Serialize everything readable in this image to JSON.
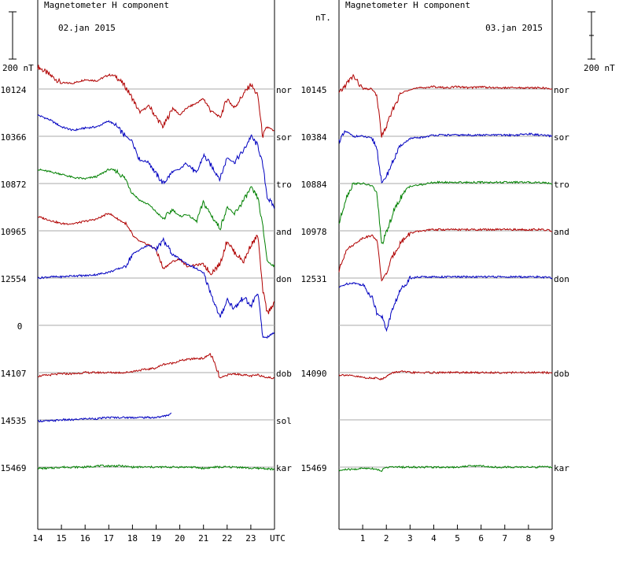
{
  "chart_data": [
    {
      "type": "line",
      "title": "Magnetometer H component",
      "date": "02.jan 2015",
      "scale_label": "200 nT",
      "x_ticks": [
        "14",
        "15",
        "16",
        "17",
        "18",
        "19",
        "20",
        "21",
        "22",
        "23",
        "UTC"
      ],
      "xlim": [
        14,
        24
      ],
      "series": [
        {
          "name": "nor",
          "baseline": "10124",
          "color": "#b00000",
          "x": [
            14,
            14.5,
            15,
            15.5,
            16,
            16.5,
            17,
            17.3,
            17.7,
            18,
            18.3,
            18.7,
            19,
            19.3,
            19.7,
            20,
            20.3,
            20.7,
            21,
            21.3,
            21.7,
            22,
            22.3,
            22.7,
            23,
            23.3,
            23.5,
            23.7,
            24
          ],
          "y": [
            95,
            60,
            25,
            25,
            40,
            35,
            60,
            55,
            10,
            -40,
            -100,
            -70,
            -120,
            -160,
            -80,
            -110,
            -80,
            -60,
            -40,
            -90,
            -120,
            -40,
            -80,
            -20,
            20,
            -30,
            -200,
            -160,
            -180
          ]
        },
        {
          "name": "sor",
          "baseline": "10366",
          "color": "#0000c0",
          "x": [
            14,
            14.5,
            15,
            15.5,
            16,
            16.5,
            17,
            17.3,
            17.7,
            18,
            18.3,
            18.7,
            19,
            19.3,
            19.7,
            20,
            20.3,
            20.7,
            21,
            21.3,
            21.7,
            22,
            22.3,
            22.7,
            23,
            23.3,
            23.5,
            23.7,
            24
          ],
          "y": [
            90,
            70,
            40,
            25,
            35,
            40,
            65,
            45,
            0,
            -20,
            -100,
            -110,
            -160,
            -200,
            -150,
            -140,
            -110,
            -160,
            -80,
            -120,
            -180,
            -90,
            -110,
            -60,
            0,
            -40,
            -120,
            -260,
            -300
          ]
        },
        {
          "name": "tro",
          "baseline": "10872",
          "color": "#008000",
          "x": [
            14,
            14.5,
            15,
            15.5,
            16,
            16.5,
            17,
            17.3,
            17.7,
            18,
            18.3,
            18.7,
            19,
            19.3,
            19.7,
            20,
            20.3,
            20.7,
            21,
            21.3,
            21.7,
            22,
            22.3,
            22.7,
            23,
            23.3,
            23.5,
            23.7,
            24
          ],
          "y": [
            60,
            50,
            40,
            25,
            20,
            30,
            60,
            55,
            20,
            -40,
            -70,
            -90,
            -120,
            -150,
            -110,
            -140,
            -130,
            -160,
            -80,
            -130,
            -190,
            -100,
            -130,
            -70,
            -20,
            -60,
            -180,
            -330,
            -350
          ]
        },
        {
          "name": "and",
          "baseline": "10965",
          "color": "#b00000",
          "x": [
            14,
            14.5,
            15,
            15.5,
            16,
            16.5,
            17,
            17.3,
            17.7,
            18,
            18.3,
            18.7,
            19,
            19.3,
            19.7,
            20,
            20.3,
            20.7,
            21,
            21.3,
            21.7,
            22,
            22.3,
            22.7,
            23,
            23.3,
            23.5,
            23.7,
            24
          ],
          "y": [
            60,
            45,
            30,
            30,
            40,
            50,
            75,
            55,
            30,
            -20,
            -45,
            -60,
            -80,
            -160,
            -130,
            -120,
            -150,
            -145,
            -140,
            -180,
            -140,
            -40,
            -90,
            -130,
            -60,
            -20,
            -250,
            -350,
            -300
          ]
        },
        {
          "name": "don",
          "baseline": "12554",
          "color": "#0000c0",
          "x": [
            14,
            14.5,
            15,
            15.5,
            16,
            16.5,
            17,
            17.3,
            17.7,
            18,
            18.3,
            18.7,
            19,
            19.3,
            19.7,
            20,
            20.3,
            20.7,
            21,
            21.3,
            21.7,
            22,
            22.3,
            22.7,
            23,
            23.3,
            23.5,
            23.7,
            24
          ],
          "y": [
            0,
            5,
            5,
            10,
            10,
            15,
            25,
            35,
            50,
            100,
            120,
            140,
            120,
            160,
            100,
            80,
            60,
            40,
            20,
            -60,
            -170,
            -90,
            -130,
            -80,
            -120,
            -60,
            -250,
            -250,
            -230
          ]
        },
        {
          "name": "dob",
          "baseline": "14107",
          "color": "#b00000",
          "x": [
            14,
            14.5,
            15,
            15.5,
            16,
            16.5,
            17,
            17.3,
            17.7,
            18,
            18.3,
            18.7,
            19,
            19.3,
            19.7,
            20,
            20.3,
            20.7,
            21,
            21.3,
            21.7,
            22,
            22.3,
            22.7,
            23,
            23.3,
            23.5,
            23.7,
            24
          ],
          "y": [
            -15,
            -10,
            -5,
            -5,
            0,
            0,
            0,
            0,
            0,
            5,
            10,
            15,
            20,
            35,
            40,
            50,
            55,
            60,
            60,
            80,
            -25,
            -10,
            -5,
            -10,
            -15,
            -10,
            -15,
            -20,
            -25
          ]
        },
        {
          "name": "sol",
          "baseline": "14535",
          "color": "#0000c0",
          "x": [
            14,
            14.5,
            15,
            15.5,
            16,
            16.5,
            17,
            17.5,
            18,
            18.5,
            19,
            19.3,
            19.5,
            19.65
          ],
          "y": [
            -5,
            -5,
            0,
            0,
            5,
            5,
            10,
            10,
            10,
            10,
            10,
            15,
            20,
            30
          ]
        },
        {
          "name": "kar",
          "baseline": "15469",
          "color": "#008000",
          "x": [
            14,
            14.5,
            15,
            15.5,
            16,
            16.5,
            17,
            17.5,
            18,
            18.5,
            19,
            19.5,
            20,
            20.5,
            21,
            21.5,
            22,
            22.5,
            23,
            23.5,
            24
          ],
          "y": [
            -5,
            -5,
            0,
            0,
            0,
            5,
            5,
            5,
            0,
            0,
            0,
            0,
            0,
            0,
            -5,
            0,
            0,
            0,
            -5,
            -5,
            -10
          ]
        }
      ],
      "empty_row": {
        "baseline": "0"
      }
    },
    {
      "type": "line",
      "title": "Magnetometer H component",
      "date": "03.jan 2015",
      "unit_label": "nT.",
      "scale_label": "200 nT",
      "x_ticks": [
        "1",
        "2",
        "3",
        "4",
        "5",
        "6",
        "7",
        "8",
        "9"
      ],
      "xlim": [
        0,
        9
      ],
      "series": [
        {
          "name": "nor",
          "baseline": "10145",
          "color": "#b00000",
          "x": [
            0,
            0.3,
            0.6,
            1,
            1.4,
            1.6,
            1.8,
            2,
            2.3,
            2.6,
            3,
            3.5,
            4,
            4.5,
            5,
            5.5,
            6,
            6.5,
            7,
            7.5,
            8,
            8.5,
            9
          ],
          "y": [
            -20,
            20,
            55,
            0,
            0,
            -30,
            -200,
            -160,
            -80,
            -20,
            0,
            5,
            10,
            5,
            10,
            5,
            10,
            5,
            5,
            5,
            5,
            5,
            0
          ]
        },
        {
          "name": "sor",
          "baseline": "10384",
          "color": "#0000c0",
          "x": [
            0,
            0.3,
            0.6,
            1,
            1.4,
            1.6,
            1.8,
            2,
            2.3,
            2.6,
            3,
            3.5,
            4,
            4.5,
            5,
            5.5,
            6,
            6.5,
            7,
            7.5,
            8,
            8.5,
            9
          ],
          "y": [
            -20,
            20,
            0,
            0,
            -10,
            -50,
            -200,
            -170,
            -100,
            -40,
            -10,
            -5,
            5,
            5,
            5,
            5,
            5,
            5,
            5,
            5,
            10,
            5,
            0
          ]
        },
        {
          "name": "tro",
          "baseline": "10884",
          "color": "#008000",
          "x": [
            0,
            0.3,
            0.6,
            1,
            1.4,
            1.6,
            1.8,
            2,
            2.3,
            2.6,
            3,
            3.5,
            4,
            4.5,
            5,
            5.5,
            6,
            6.5,
            7,
            7.5,
            8,
            8.5,
            9
          ],
          "y": [
            -170,
            -60,
            0,
            0,
            -10,
            -40,
            -260,
            -210,
            -120,
            -60,
            -10,
            -5,
            5,
            5,
            5,
            5,
            5,
            5,
            5,
            5,
            5,
            5,
            0
          ]
        },
        {
          "name": "and",
          "baseline": "10978",
          "color": "#b00000",
          "x": [
            0,
            0.3,
            0.6,
            1,
            1.4,
            1.6,
            1.8,
            2,
            2.3,
            2.6,
            3,
            3.5,
            4,
            4.5,
            5,
            5.5,
            6,
            6.5,
            7,
            7.5,
            8,
            8.5,
            9
          ],
          "y": [
            -170,
            -80,
            -60,
            -30,
            -20,
            -40,
            -210,
            -180,
            -100,
            -50,
            -10,
            0,
            5,
            5,
            5,
            5,
            5,
            5,
            5,
            5,
            5,
            5,
            0
          ]
        },
        {
          "name": "don",
          "baseline": "12531",
          "color": "#0000c0",
          "x": [
            0,
            0.3,
            0.6,
            1,
            1.4,
            1.6,
            1.8,
            2,
            2.3,
            2.6,
            3,
            3.5,
            4,
            4.5,
            5,
            5.5,
            6,
            6.5,
            7,
            7.5,
            8,
            8.5,
            9
          ],
          "y": [
            -40,
            -25,
            -20,
            -30,
            -80,
            -150,
            -160,
            -220,
            -120,
            -50,
            0,
            5,
            5,
            5,
            5,
            5,
            5,
            5,
            5,
            5,
            5,
            5,
            0
          ]
        },
        {
          "name": "dob",
          "baseline": "14090",
          "color": "#b00000",
          "x": [
            0,
            0.3,
            0.6,
            1,
            1.4,
            1.6,
            1.8,
            2,
            2.3,
            2.6,
            3,
            3.5,
            4,
            4.5,
            5,
            5.5,
            6,
            6.5,
            7,
            7.5,
            8,
            8.5,
            9
          ],
          "y": [
            -10,
            -10,
            -15,
            -20,
            -25,
            -20,
            -30,
            -15,
            0,
            5,
            0,
            0,
            0,
            0,
            0,
            0,
            0,
            0,
            0,
            0,
            0,
            0,
            0
          ]
        },
        {
          "name": "kar",
          "baseline": "15469",
          "color": "#008000",
          "x": [
            0,
            0.3,
            0.6,
            1,
            1.4,
            1.6,
            1.8,
            2,
            2.3,
            2.6,
            3,
            3.5,
            4,
            4.5,
            5,
            5.5,
            6,
            6.5,
            7,
            7.5,
            8,
            8.5,
            9
          ],
          "y": [
            -15,
            -10,
            -10,
            -5,
            -5,
            -10,
            -15,
            0,
            0,
            0,
            0,
            0,
            0,
            0,
            0,
            5,
            5,
            0,
            0,
            0,
            0,
            0,
            0
          ]
        }
      ],
      "empty_rows": [
        {
          "baseline": ""
        },
        {
          "baseline": ""
        }
      ]
    }
  ]
}
